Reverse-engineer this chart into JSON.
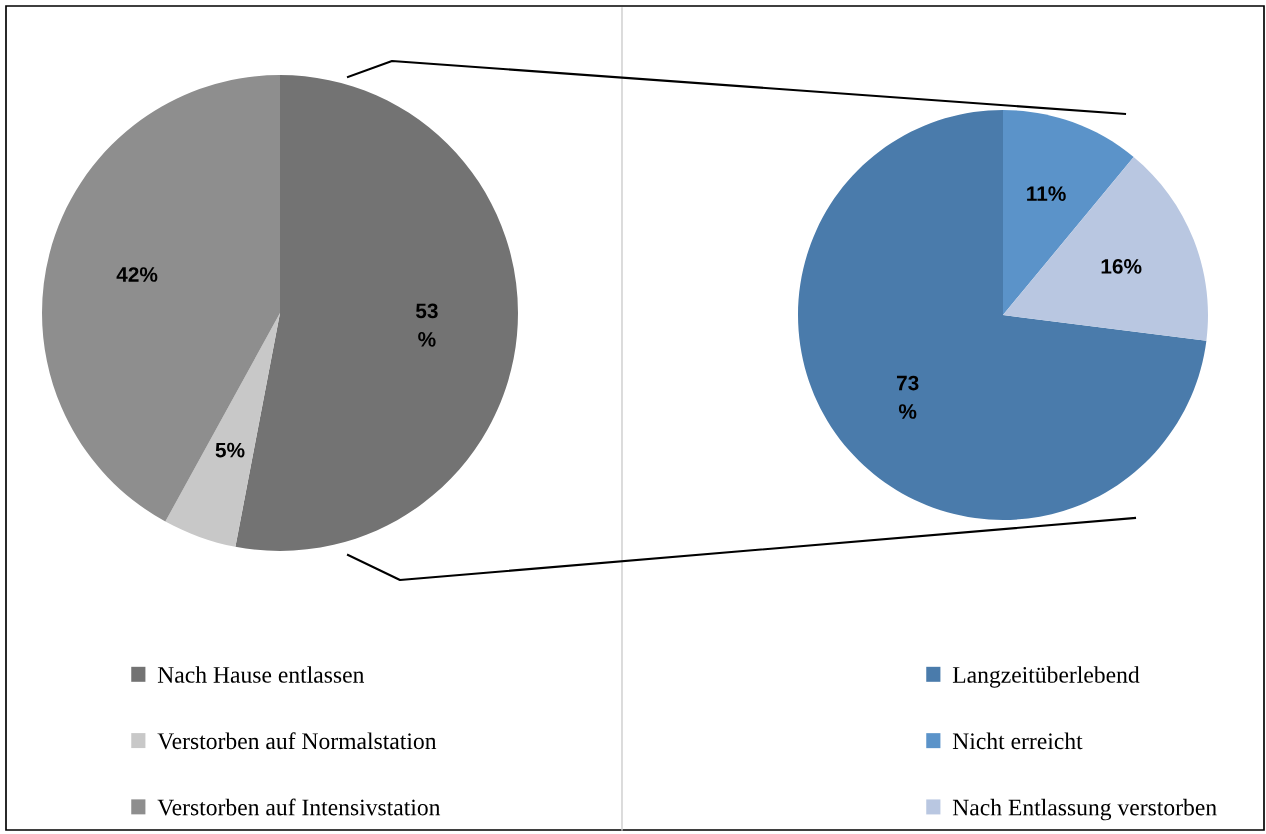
{
  "chart_data": [
    {
      "type": "pie",
      "categories": [
        "Nach Hause entlassen",
        "Verstorben auf Normalstation",
        "Verstorben auf Intensivstation"
      ],
      "values": [
        53,
        5,
        42
      ],
      "colors": [
        "#737373",
        "#c8c8c8",
        "#8e8e8e"
      ],
      "value_labels": [
        "53\n%",
        "5%",
        "42%"
      ],
      "legend": "bottom"
    },
    {
      "type": "pie",
      "categories": [
        "Langzeitüberlebend",
        "Nicht erreicht",
        "Nach Entlassung verstorben"
      ],
      "values": [
        73,
        11,
        16
      ],
      "colors": [
        "#4a7bab",
        "#5b93c9",
        "#b9c7e1"
      ],
      "value_labels": [
        "73\n%",
        "11%",
        "16%"
      ],
      "legend": "bottom"
    }
  ]
}
